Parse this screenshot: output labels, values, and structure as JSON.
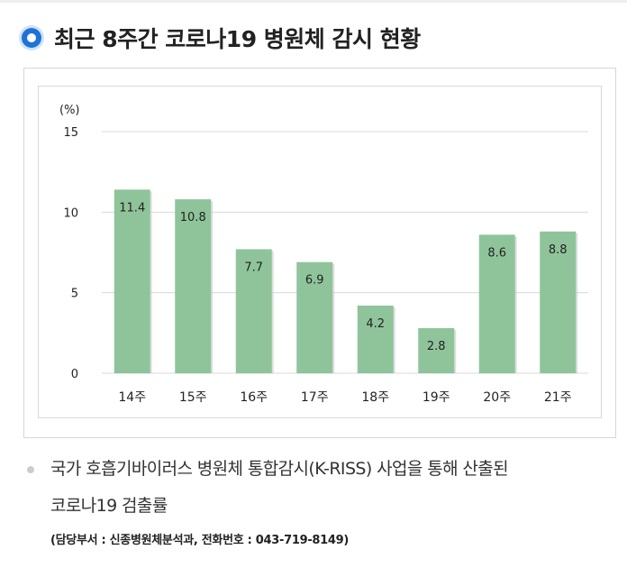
{
  "header": {
    "title": "최근 8주간 코로나19 병원체 감시 현황"
  },
  "chart_data": {
    "type": "bar",
    "ylabel": "(%)",
    "ylim": [
      0,
      15
    ],
    "yticks": [
      0,
      5,
      10,
      15
    ],
    "grid": true,
    "categories": [
      "14주",
      "15주",
      "16주",
      "17주",
      "18주",
      "19주",
      "20주",
      "21주"
    ],
    "values": [
      11.4,
      10.8,
      7.7,
      6.9,
      4.2,
      2.8,
      8.6,
      8.8
    ],
    "value_labels": [
      "11.4",
      "10.8",
      "7.7",
      "6.9",
      "4.2",
      "2.8",
      "8.6",
      "8.8"
    ],
    "bar_color": "#8fc49a"
  },
  "note": {
    "line1": "국가 호흡기바이러스 병원체 통합감시(K-RISS) 사업을 통해 산출된",
    "line2": "코로나19 검출률",
    "contact": "(담당부서 : 신종병원체분석과, 전화번호 : 043-719-8149)"
  }
}
